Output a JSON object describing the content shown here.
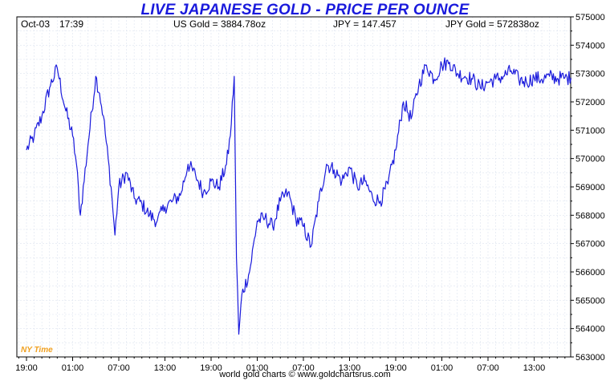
{
  "header": {
    "title": "LIVE JAPANESE GOLD - PRICE PER OUNCE",
    "date": "Oct-03",
    "time": "17:39",
    "us_gold": "US Gold = 3884.78oz",
    "jpy_rate": "JPY = 147.457",
    "jpy_gold": "JPY Gold = 572838oz"
  },
  "timezone_label": "NY Time",
  "footer": "world gold charts © www.goldchartsrus.com",
  "colors": {
    "line": "#1a1adc",
    "grid": "#dde3ef",
    "title": "#1a1adc",
    "timezone": "#f0a020"
  },
  "chart_data": {
    "type": "line",
    "title": "LIVE JAPANESE GOLD - PRICE PER OUNCE",
    "xlabel": "",
    "ylabel": "",
    "ylim": [
      563000,
      575000
    ],
    "y_ticks": [
      563000,
      564000,
      565000,
      566000,
      567000,
      568000,
      569000,
      570000,
      571000,
      572000,
      573000,
      574000,
      575000
    ],
    "y_axis_position": "right",
    "x_ticks": [
      "19:00",
      "01:00",
      "07:00",
      "13:00",
      "19:00",
      "01:00",
      "07:00",
      "13:00",
      "19:00",
      "01:00",
      "07:00",
      "13:00"
    ],
    "grid": true,
    "x_hours": [
      0,
      1,
      2,
      3,
      4,
      5,
      6,
      6.5,
      7,
      8,
      9,
      9.5,
      10,
      11,
      11.5,
      12,
      13,
      14,
      15,
      16,
      17,
      18,
      19,
      20,
      21,
      22,
      23,
      24,
      25,
      26,
      26.5,
      27,
      27.3,
      27.6,
      28,
      29,
      30,
      31,
      32,
      33,
      34,
      35,
      36,
      37,
      38,
      39,
      40,
      41,
      42,
      43,
      44,
      45,
      46,
      47,
      48,
      49,
      50,
      51,
      52,
      53,
      54,
      55,
      56,
      57,
      58,
      59,
      60,
      61,
      62,
      63,
      64,
      65,
      66,
      67,
      68,
      69,
      70,
      70.8
    ],
    "values": [
      570300,
      570800,
      571500,
      572500,
      573200,
      571800,
      570800,
      569800,
      568000,
      570500,
      572900,
      572300,
      571500,
      569000,
      567300,
      569000,
      569500,
      568600,
      568400,
      568000,
      567800,
      568300,
      568500,
      568700,
      569800,
      569400,
      568800,
      569200,
      569000,
      569800,
      570800,
      572900,
      566500,
      563800,
      565200,
      566000,
      567800,
      567900,
      567600,
      568500,
      568800,
      567900,
      567600,
      566900,
      568500,
      569800,
      569600,
      569200,
      569700,
      569000,
      569200,
      568600,
      568500,
      569100,
      570300,
      572000,
      571400,
      572600,
      573300,
      572800,
      573300,
      573400,
      573000,
      572900,
      572800,
      572500,
      572700,
      572800,
      572900,
      573100,
      572800,
      572700,
      572850,
      572800,
      572900,
      572830,
      572850,
      572838
    ]
  }
}
